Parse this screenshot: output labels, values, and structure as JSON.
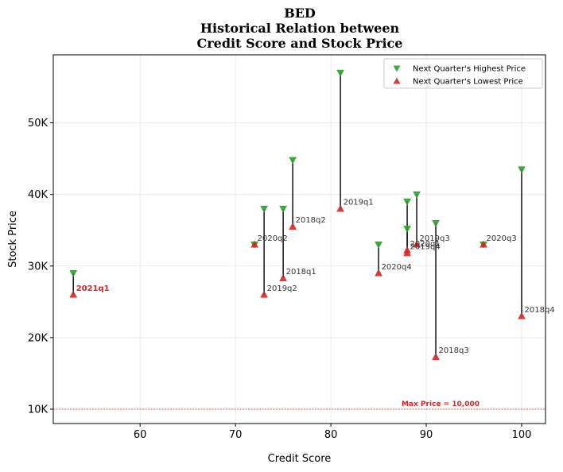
{
  "chart_data": {
    "type": "scatter",
    "title_lines": [
      "BED",
      "Historical Relation between",
      "Credit Score and Stock Price"
    ],
    "xlabel": "Credit Score",
    "ylabel": "Stock Price",
    "xlim": [
      50.9,
      102.5
    ],
    "ylim": [
      8000,
      59500
    ],
    "x_ticks": [
      60,
      70,
      80,
      90,
      100
    ],
    "y_ticks": [
      10000,
      20000,
      30000,
      40000,
      50000
    ],
    "y_tick_labels": [
      "10K",
      "20K",
      "30K",
      "40K",
      "50K"
    ],
    "grid": true,
    "legend_position": "top-right",
    "series": [
      {
        "name": "Next Quarter's Highest Price",
        "marker": "triangle-down",
        "color": "#2ca02c"
      },
      {
        "name": "Next Quarter's Lowest Price",
        "marker": "triangle-up",
        "color": "#d62728"
      }
    ],
    "points": [
      {
        "label": "2021q1",
        "x": 53,
        "high": 29000,
        "low": 26000,
        "highlight": true
      },
      {
        "label": "2020q2",
        "x": 72,
        "high": 33000,
        "low": 33000
      },
      {
        "label": "2019q2",
        "x": 73,
        "high": 38000,
        "low": 26000
      },
      {
        "label": "2018q1",
        "x": 75,
        "high": 38000,
        "low": 28300
      },
      {
        "label": "2018q2",
        "x": 76,
        "high": 44800,
        "low": 35500
      },
      {
        "label": "2019q1",
        "x": 81,
        "high": 57000,
        "low": 38000
      },
      {
        "label": "2020q4",
        "x": 85,
        "high": 33000,
        "low": 29000
      },
      {
        "label": "2020q1",
        "x": 88,
        "high": 39000,
        "low": 32200
      },
      {
        "label": "2019q4",
        "x": 88,
        "high": 35200,
        "low": 31800
      },
      {
        "label": "2019q3",
        "x": 89,
        "high": 40000,
        "low": 33000
      },
      {
        "label": "2018q3",
        "x": 91,
        "high": 36000,
        "low": 17300
      },
      {
        "label": "2020q3",
        "x": 96,
        "high": 33000,
        "low": 33000
      },
      {
        "label": "2018q4",
        "x": 100,
        "high": 43500,
        "low": 23000
      }
    ],
    "max_price_line": {
      "value": 10000,
      "label": "Max Price = 10,000",
      "color": "#d62728"
    }
  }
}
